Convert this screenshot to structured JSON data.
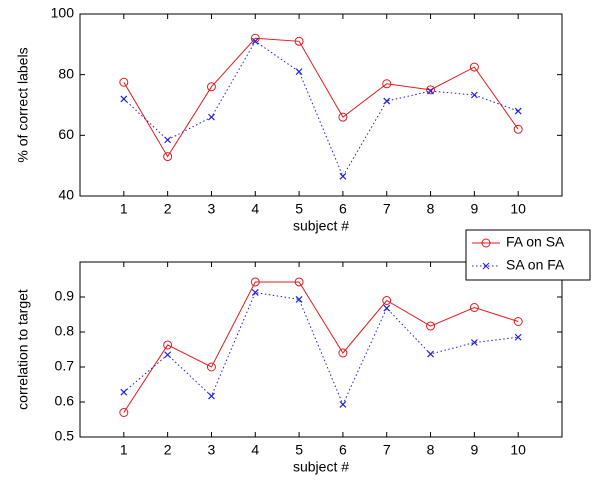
{
  "chart_data": [
    {
      "type": "line",
      "ylabel": "% of correct labels",
      "xlabel": "subject #",
      "x": [
        1,
        2,
        3,
        4,
        5,
        6,
        7,
        8,
        9,
        10
      ],
      "xlim": [
        0,
        11
      ],
      "xticks": [
        1,
        2,
        3,
        4,
        5,
        6,
        7,
        8,
        9,
        10
      ],
      "ylim": [
        40,
        100
      ],
      "yticks": [
        40,
        60,
        80,
        100
      ],
      "series": [
        {
          "color": "#e31a1c",
          "marker": "circle",
          "linestyle": "solid",
          "values": [
            77.5,
            53,
            76,
            92,
            91,
            66,
            77,
            75,
            82.5,
            62
          ]
        },
        {
          "color": "#1f1fe0",
          "marker": "x",
          "linestyle": "dotted",
          "values": [
            72,
            58.5,
            66,
            91,
            81,
            46.5,
            71.3,
            74.6,
            73.3,
            68
          ]
        }
      ]
    },
    {
      "type": "line",
      "ylabel": "correlation to target",
      "xlabel": "subject #",
      "x": [
        1,
        2,
        3,
        4,
        5,
        6,
        7,
        8,
        9,
        10
      ],
      "xlim": [
        0,
        11
      ],
      "xticks": [
        1,
        2,
        3,
        4,
        5,
        6,
        7,
        8,
        9,
        10
      ],
      "ylim": [
        0.5,
        1.0
      ],
      "yticks": [
        0.5,
        0.6,
        0.7,
        0.8,
        0.9
      ],
      "legend": "top-right",
      "series": [
        {
          "name": "FA on SA",
          "color": "#e31a1c",
          "marker": "circle",
          "linestyle": "solid",
          "values": [
            0.57,
            0.763,
            0.7,
            0.943,
            0.943,
            0.74,
            0.89,
            0.817,
            0.87,
            0.83
          ]
        },
        {
          "name": "SA on FA",
          "color": "#1f1fe0",
          "marker": "x",
          "linestyle": "dotted",
          "values": [
            0.628,
            0.735,
            0.617,
            0.913,
            0.893,
            0.593,
            0.868,
            0.737,
            0.77,
            0.785
          ]
        }
      ]
    }
  ]
}
